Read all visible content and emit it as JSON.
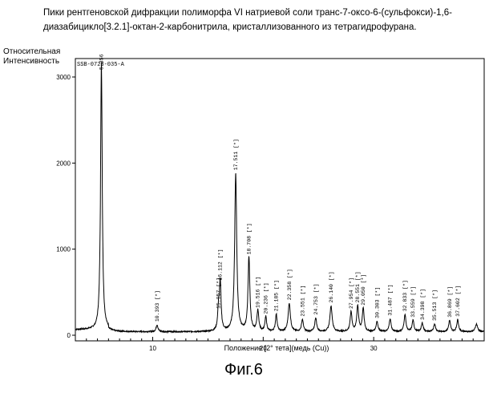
{
  "caption": "Пики рентгеновской дифракции полиморфа VI натриевой соли транс-7-оксо-6-(сульфокси)-1,6-диазабицикло[3.2.1]-октан-2-карбонитрила, кристаллизованного из тетрагидрофурана.",
  "figure_label": "Фиг.6",
  "chart_data": {
    "type": "line",
    "sample_id": "SSB-0728-035-A",
    "ylabel_line1": "Относительная",
    "ylabel_line2": "Интенсивность",
    "xlabel": "Положение [2° тета](медь (Cu))",
    "xlim": [
      3,
      40
    ],
    "ylim": [
      0,
      3000
    ],
    "x_ticks": [
      10,
      20,
      30
    ],
    "y_ticks": [
      0,
      1000,
      2000,
      3000
    ],
    "baseline": 40,
    "peaks": [
      {
        "x": 5.356,
        "y": 3100,
        "w": 0.09,
        "label": "5.356"
      },
      {
        "x": 10.393,
        "y": 80,
        "w": 0.1,
        "label": "10.393 [*]"
      },
      {
        "x": 15.957,
        "y": 230,
        "w": 0.09,
        "label": "15.957 [*]"
      },
      {
        "x": 16.112,
        "y": 560,
        "w": 0.09,
        "label": "16.112 [*]"
      },
      {
        "x": 17.511,
        "y": 1840,
        "w": 0.11,
        "label": "17.511 [*]"
      },
      {
        "x": 18.708,
        "y": 860,
        "w": 0.1,
        "label": "18.708 [*]"
      },
      {
        "x": 19.516,
        "y": 240,
        "w": 0.1,
        "label": "19.516 [*]"
      },
      {
        "x": 20.236,
        "y": 170,
        "w": 0.09,
        "label": "20.236 [*]"
      },
      {
        "x": 21.185,
        "y": 200,
        "w": 0.09,
        "label": "21.185 [*]"
      },
      {
        "x": 22.358,
        "y": 330,
        "w": 0.12,
        "label": "22.358 [*]"
      },
      {
        "x": 23.551,
        "y": 140,
        "w": 0.1,
        "label": "23.551 [*]"
      },
      {
        "x": 24.753,
        "y": 160,
        "w": 0.1,
        "label": "24.753 [*]"
      },
      {
        "x": 26.14,
        "y": 300,
        "w": 0.12,
        "label": "26.140 [*]"
      },
      {
        "x": 27.954,
        "y": 230,
        "w": 0.1,
        "label": "27.954 [*]"
      },
      {
        "x": 28.55,
        "y": 300,
        "w": 0.1,
        "label": "28.551 [*]"
      },
      {
        "x": 29.05,
        "y": 270,
        "w": 0.1,
        "label": "29.050 [*]"
      },
      {
        "x": 30.303,
        "y": 120,
        "w": 0.1,
        "label": "30.303 [*]"
      },
      {
        "x": 31.487,
        "y": 150,
        "w": 0.1,
        "label": "31.487 [*]"
      },
      {
        "x": 32.833,
        "y": 200,
        "w": 0.1,
        "label": "32.833 [*]"
      },
      {
        "x": 33.559,
        "y": 130,
        "w": 0.1,
        "label": "33.559 [*]"
      },
      {
        "x": 34.398,
        "y": 100,
        "w": 0.1,
        "label": "34.398 [*]"
      },
      {
        "x": 35.513,
        "y": 90,
        "w": 0.1,
        "label": "35.513 [*]"
      },
      {
        "x": 36.869,
        "y": 130,
        "w": 0.1,
        "label": "36.869 [*]"
      },
      {
        "x": 37.602,
        "y": 140,
        "w": 0.1,
        "label": "37.602 [*]"
      },
      {
        "x": 39.3,
        "y": 90,
        "w": 0.12,
        "label": ""
      }
    ]
  }
}
